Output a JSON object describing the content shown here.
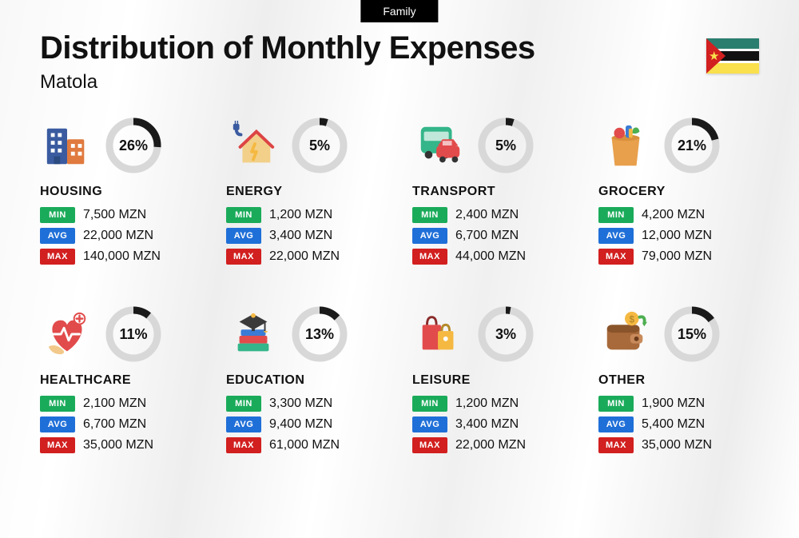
{
  "tag": "Family",
  "title": "Distribution of Monthly Expenses",
  "subtitle": "Matola",
  "currency": "MZN",
  "colors": {
    "min": "#1aab5a",
    "avg": "#1f6fd8",
    "max": "#d21f1f",
    "donut_fg": "#1a1a1a",
    "donut_bg": "#d8d8d8",
    "flag": {
      "top": "#2a7e6f",
      "mid_border": "#ffffff",
      "mid": "#111111",
      "bottom": "#f9e04c",
      "tri": "#d21f1f"
    }
  },
  "labels": {
    "min": "MIN",
    "avg": "AVG",
    "max": "MAX"
  },
  "categories": [
    {
      "key": "housing",
      "name": "HOUSING",
      "pct": 26,
      "min": "7,500",
      "avg": "22,000",
      "max": "140,000",
      "icon": "buildings"
    },
    {
      "key": "energy",
      "name": "ENERGY",
      "pct": 5,
      "min": "1,200",
      "avg": "3,400",
      "max": "22,000",
      "icon": "energy-house"
    },
    {
      "key": "transport",
      "name": "TRANSPORT",
      "pct": 5,
      "min": "2,400",
      "avg": "6,700",
      "max": "44,000",
      "icon": "bus-car"
    },
    {
      "key": "grocery",
      "name": "GROCERY",
      "pct": 21,
      "min": "4,200",
      "avg": "12,000",
      "max": "79,000",
      "icon": "grocery-bag"
    },
    {
      "key": "healthcare",
      "name": "HEALTHCARE",
      "pct": 11,
      "min": "2,100",
      "avg": "6,700",
      "max": "35,000",
      "icon": "healthcare"
    },
    {
      "key": "education",
      "name": "EDUCATION",
      "pct": 13,
      "min": "3,300",
      "avg": "9,400",
      "max": "61,000",
      "icon": "education"
    },
    {
      "key": "leisure",
      "name": "LEISURE",
      "pct": 3,
      "min": "1,200",
      "avg": "3,400",
      "max": "22,000",
      "icon": "shopping-bags"
    },
    {
      "key": "other",
      "name": "OTHER",
      "pct": 15,
      "min": "1,900",
      "avg": "5,400",
      "max": "35,000",
      "icon": "wallet"
    }
  ],
  "donut": {
    "radius": 30,
    "stroke": 9
  }
}
